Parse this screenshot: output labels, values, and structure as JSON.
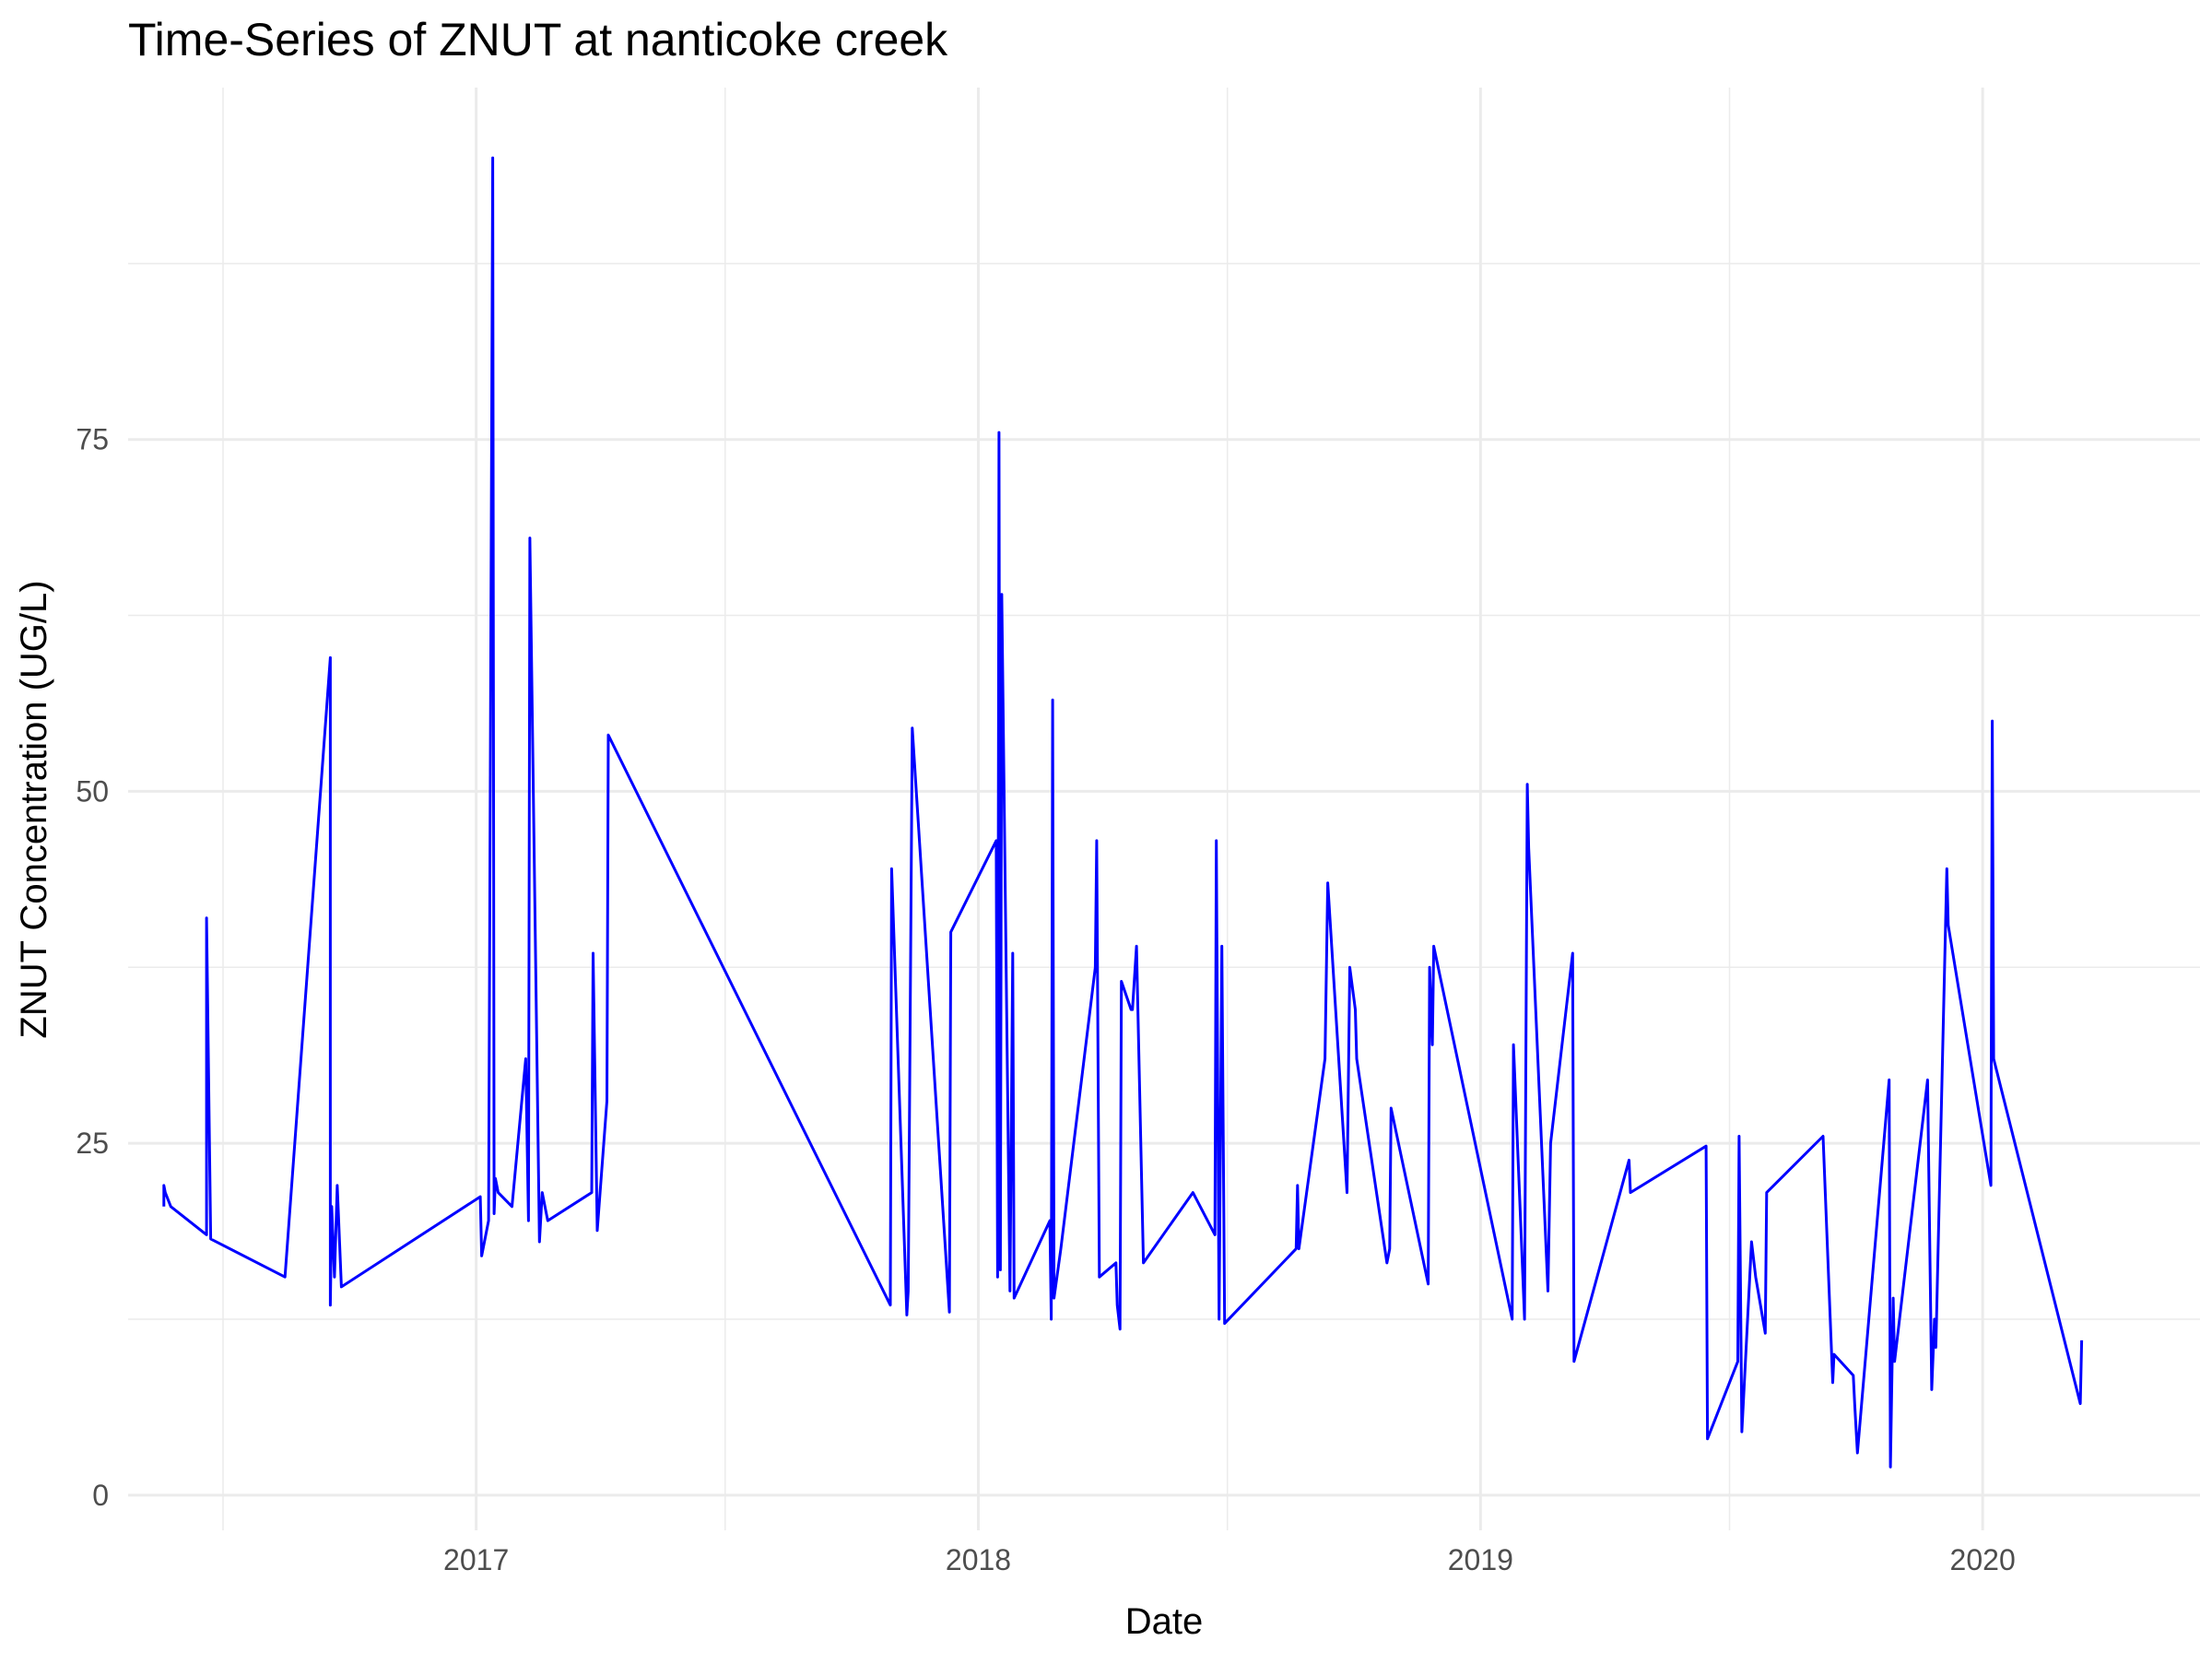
{
  "chart_data": {
    "type": "line",
    "title": "Time-Series of ZNUT at nanticoke creek",
    "xlabel": "Date",
    "ylabel": "ZNUT Concentration (UG/L)",
    "x_ticks": [
      "2017",
      "2018",
      "2019",
      "2020"
    ],
    "y_ticks": [
      "0",
      "25",
      "50",
      "75"
    ],
    "xlim": [
      "2016-04-23",
      "2020-06-07"
    ],
    "ylim": [
      -2.5,
      100
    ],
    "grid": true,
    "line_color": "#0000FF",
    "x": [
      "2016-05-19",
      "2016-05-19",
      "2016-05-20",
      "2016-05-24",
      "2016-06-19",
      "2016-06-19",
      "2016-06-22",
      "2016-08-15",
      "2016-09-17",
      "2016-09-17",
      "2016-09-18",
      "2016-09-20",
      "2016-09-22",
      "2016-09-25",
      "2017-01-04",
      "2017-01-05",
      "2017-01-10",
      "2017-01-13",
      "2017-01-14",
      "2017-01-15",
      "2017-01-17",
      "2017-01-27",
      "2017-02-06",
      "2017-02-08",
      "2017-02-09",
      "2017-02-16",
      "2017-02-18",
      "2017-02-21",
      "2017-02-22",
      "2017-03-26",
      "2017-03-27",
      "2017-03-30",
      "2017-04-06",
      "2017-04-07",
      "2017-10-29",
      "2017-10-30",
      "2017-11-10",
      "2017-11-11",
      "2017-11-14",
      "2017-12-11",
      "2017-12-12",
      "2018-01-14",
      "2018-01-15",
      "2018-01-16",
      "2018-01-17",
      "2018-01-18",
      "2018-01-24",
      "2018-01-26",
      "2018-01-27",
      "2018-02-22",
      "2018-02-23",
      "2018-02-24",
      "2018-02-25",
      "2018-03-02",
      "2018-03-27",
      "2018-03-28",
      "2018-03-30",
      "2018-04-11",
      "2018-04-12",
      "2018-04-14",
      "2018-04-15",
      "2018-04-22",
      "2018-04-23",
      "2018-04-26",
      "2018-05-01",
      "2018-06-06",
      "2018-06-22",
      "2018-06-23",
      "2018-06-25",
      "2018-06-27",
      "2018-06-29",
      "2018-08-20",
      "2018-08-21",
      "2018-08-22",
      "2018-09-10",
      "2018-09-12",
      "2018-09-26",
      "2018-09-28",
      "2018-10-02",
      "2018-10-03",
      "2018-10-25",
      "2018-10-27",
      "2018-10-28",
      "2018-11-24",
      "2018-11-25",
      "2018-11-27",
      "2018-11-28",
      "2019-01-24",
      "2019-01-25",
      "2019-02-01",
      "2019-02-02",
      "2019-02-04",
      "2019-02-05",
      "2019-02-19",
      "2019-02-21",
      "2019-03-09",
      "2019-03-10",
      "2019-04-19",
      "2019-04-20",
      "2019-06-14",
      "2019-06-15",
      "2019-07-07",
      "2019-07-08",
      "2019-07-10",
      "2019-07-17",
      "2019-07-20",
      "2019-07-27",
      "2019-07-28",
      "2019-09-07",
      "2019-09-14",
      "2019-09-15",
      "2019-09-29",
      "2019-09-30",
      "2019-10-02",
      "2019-10-25",
      "2019-10-26",
      "2019-10-28",
      "2019-10-29",
      "2019-11-22",
      "2019-11-25",
      "2019-11-27",
      "2019-11-28",
      "2019-12-06",
      "2019-12-07",
      "2020-01-07",
      "2020-01-08",
      "2020-01-09",
      "2020-03-12",
      "2020-03-13"
    ],
    "y": [
      20.5,
      22,
      21.5,
      20.5,
      18.5,
      41,
      18.2,
      15.5,
      59.5,
      13.5,
      20.5,
      15.5,
      22,
      14.8,
      21.2,
      17,
      19.5,
      95,
      20,
      22.5,
      21.5,
      20.5,
      31,
      19.5,
      68,
      18,
      21.5,
      20,
      19.5,
      21.5,
      38.5,
      18.8,
      28,
      54,
      13.5,
      44.5,
      12.8,
      14.5,
      54.5,
      13,
      40,
      46.5,
      15.5,
      75.5,
      16,
      64,
      14.5,
      38.5,
      14,
      19.5,
      12.5,
      56.5,
      14,
      17.5,
      37.5,
      46.5,
      15.5,
      16.5,
      13.5,
      11.8,
      36.5,
      34.5,
      34.5,
      39,
      16.5,
      21.5,
      18.5,
      46.5,
      12.5,
      39,
      12.2,
      17.5,
      22,
      17.5,
      31,
      43.5,
      21.5,
      37.5,
      34.5,
      31,
      16.5,
      17.5,
      27.5,
      15,
      37.5,
      32,
      39,
      12.5,
      32,
      15,
      12.5,
      50.5,
      46,
      14.5,
      25,
      38.5,
      9.5,
      23.8,
      21.5,
      24.8,
      4,
      9.5,
      25.5,
      4.5,
      18,
      15.5,
      11.5,
      21.5,
      25.5,
      8,
      10,
      8.5,
      6.5,
      3,
      29.5,
      2,
      14,
      9.5,
      29.5,
      7.5,
      12.5,
      10.5,
      44.5,
      40.5,
      22,
      55,
      31,
      6.5,
      11
    ]
  }
}
